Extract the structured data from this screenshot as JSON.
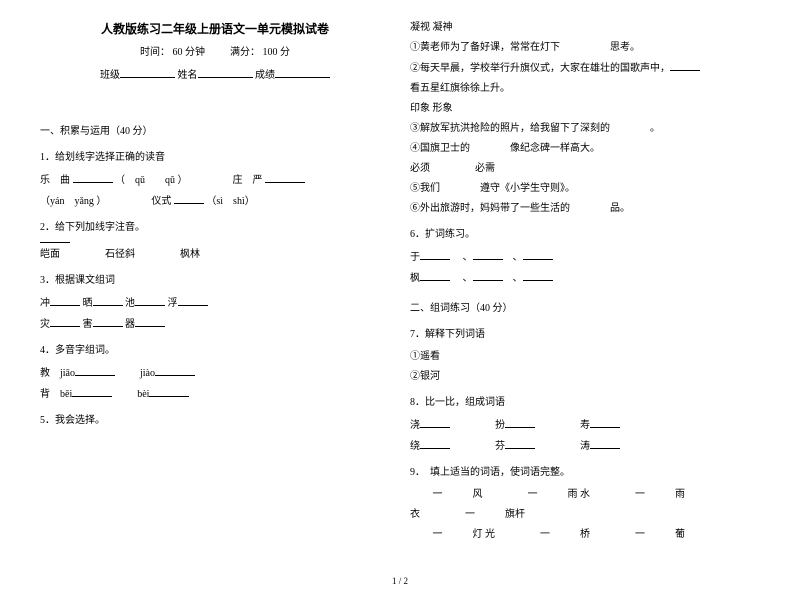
{
  "header": {
    "title": "人教版练习二年级上册语文一单元模拟试卷",
    "time_label": "时间：",
    "time_value": "60 分钟",
    "score_label": "满分：",
    "score_value": "100 分",
    "class_label": "班级",
    "name_label": "姓名",
    "grade_label": "成绩"
  },
  "sec1": {
    "heading": "一、积累与运用（40 分）",
    "q1": {
      "num": "1．给划线字选择正确的读音",
      "l1a": "乐　曲",
      "l1b": "（　qǔ　　qū ）",
      "l1c": "庄　严",
      "l2a": "（yán　yǎng ）",
      "l2b": "仪式",
      "l2c": "（sì　shì）"
    },
    "q2": {
      "num": "2．给下列加线字注音。",
      "a": "皑面",
      "b": "石径斜",
      "c": "枫林"
    },
    "q3": {
      "num": "3．根据课文组词",
      "a": "冲",
      "b": "晒",
      "c": "池",
      "d": "浮",
      "e": "灾",
      "f": "害",
      "g": "器"
    },
    "q4": {
      "num": "4．多音字组词。",
      "l1a": "教　jiāo",
      "l1b": "jiào",
      "l2a": "背　bēi",
      "l2b": "bèi"
    },
    "q5": {
      "num": "5．我会选择。"
    }
  },
  "right": {
    "pair1": "凝视 凝神",
    "l1": "①黄老师为了备好课，常常在灯下　　　　　思考。",
    "l2a": "②每天早晨，学校举行升旗仪式，大家在雄壮的国歌声中，",
    "l2b": "看五星红旗徐徐上升。",
    "pair2": "印象 形象",
    "l3": "③解放军抗洪抢险的照片，给我留下了深刻的　　　　。",
    "l4": "④国旗卫士的　　　　像纪念碑一样高大。",
    "pair3a": "必须",
    "pair3b": "必需",
    "l5": "⑤我们　　　　遵守《小学生守则》。",
    "l6": "⑥外出旅游时，妈妈带了一些生活的　　　　品。",
    "q6": {
      "num": "6．扩词练习。",
      "a": "于",
      "b": "枫"
    },
    "sec2": "二、组词练习（40 分）",
    "q7": {
      "num": "7．解释下列词语",
      "a": "①遥看",
      "b": "②银河"
    },
    "q8": {
      "num": "8．比一比，组成词语",
      "r1a": "浇",
      "r1b": "扮",
      "r1c": "寿",
      "r2a": "绕",
      "r2b": "芬",
      "r2c": "涛"
    },
    "q9": {
      "num": "9．　填上适当的词语，使词语完整。",
      "r1a": "一　　　风",
      "r1b": "一　　　雨 水",
      "r1c": "一　　　雨",
      "r2a": "衣",
      "r2b": "一　　　旗杆",
      "r3a": "一　　　灯 光",
      "r3b": "一　　　桥",
      "r3c": "一　　　葡"
    }
  },
  "footer": "1 / 2"
}
